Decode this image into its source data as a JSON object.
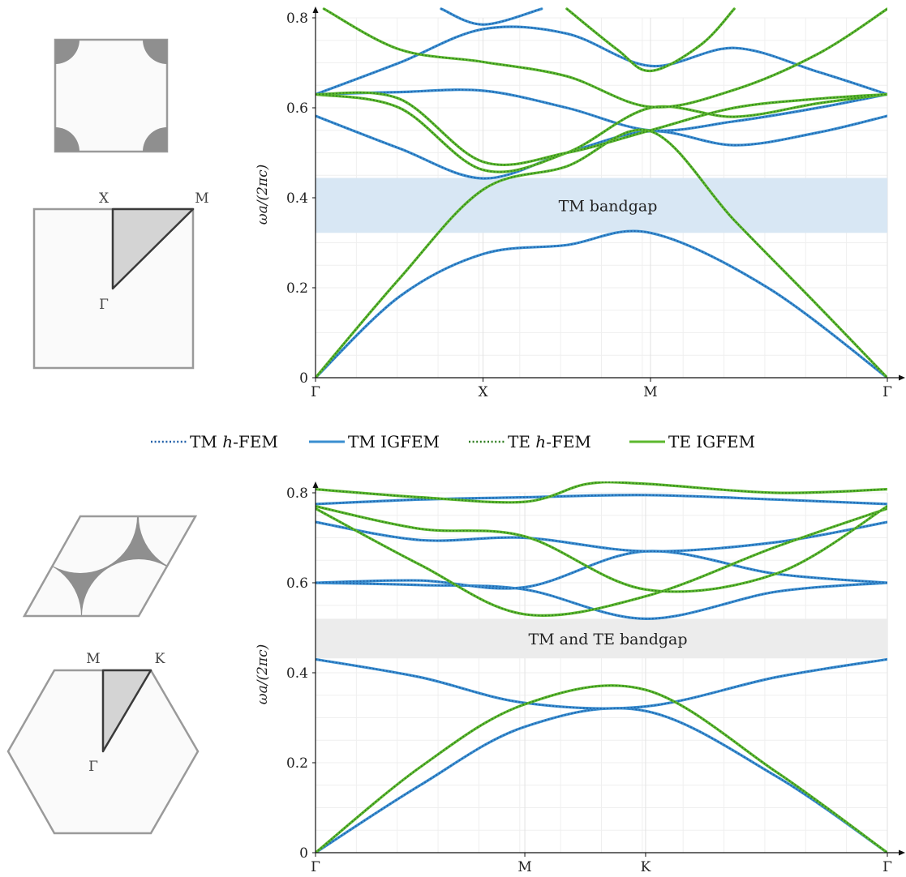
{
  "colors": {
    "tm": "#3a8fd0",
    "te": "#5cb82e",
    "tm_dash": "#1f5fa8",
    "te_dash": "#2e7d1f",
    "tm_gap": "#d8e7f4",
    "full_gap": "#ececec",
    "inclusion": "#8f8f8f",
    "cell_border": "#9a9a9a",
    "ibz_fill": "#d4d4d4",
    "ibz_border": "#3a3a3a",
    "cell_bg": "#fafafa"
  },
  "legend": [
    {
      "id": "tm-hfem",
      "label_pre": "TM ",
      "label_em": "h",
      "label_post": "-FEM",
      "color": "tm",
      "style": "dotted"
    },
    {
      "id": "tm-igfem",
      "label_pre": "TM IGFEM",
      "label_em": "",
      "label_post": "",
      "color": "tm",
      "style": "solid"
    },
    {
      "id": "te-hfem",
      "label_pre": "TE ",
      "label_em": "h",
      "label_post": "-FEM",
      "color": "te",
      "style": "dotted"
    },
    {
      "id": "te-igfem",
      "label_pre": "TE IGFEM",
      "label_em": "",
      "label_post": "",
      "color": "te",
      "style": "solid"
    }
  ],
  "square_lattice": {
    "bz_labels": {
      "X": "X",
      "M": "M",
      "Gamma": "Γ"
    }
  },
  "hex_lattice": {
    "bz_labels": {
      "M": "M",
      "K": "K",
      "Gamma": "Γ"
    }
  },
  "chart_data": [
    {
      "type": "line",
      "ylabel": "ωa/(2πc)",
      "ylim": [
        0,
        0.8
      ],
      "yticks": [
        0,
        0.2,
        0.4,
        0.6,
        0.8
      ],
      "ytick_labels": [
        "0",
        "0.2",
        "0.4",
        "0.6",
        "0.8"
      ],
      "xticks": [
        0,
        1,
        2,
        3.414
      ],
      "xtick_labels": [
        "Γ",
        "X",
        "M",
        "Γ"
      ],
      "xlim": [
        0,
        3.414
      ],
      "bandgap": {
        "label": "TM bandgap",
        "range": [
          0.322,
          0.444
        ],
        "color": "tm_gap"
      },
      "series": [
        {
          "name": "TM",
          "x": [
            0,
            0.5,
            1,
            1.5,
            2,
            2.7,
            3.414
          ],
          "values": [
            0,
            0.18,
            0.275,
            0.295,
            0.322,
            0.2,
            0
          ]
        },
        {
          "name": "TM",
          "x": [
            0,
            0.5,
            1,
            1.5,
            2,
            2.5,
            3,
            3.414
          ],
          "values": [
            0.582,
            0.51,
            0.443,
            0.5,
            0.548,
            0.517,
            0.545,
            0.582
          ]
        },
        {
          "name": "TM",
          "x": [
            0,
            0.5,
            1,
            1.5,
            2,
            2.5,
            3,
            3.414
          ],
          "values": [
            0.63,
            0.635,
            0.638,
            0.6,
            0.55,
            0.57,
            0.6,
            0.63
          ]
        },
        {
          "name": "TM",
          "x": [
            0,
            0.5,
            1,
            1.5,
            2,
            2.5,
            3,
            3.414
          ],
          "values": [
            0.63,
            0.7,
            0.775,
            0.765,
            0.693,
            0.733,
            0.68,
            0.63
          ]
        },
        {
          "name": "TM",
          "x": [
            0.75,
            1,
            1.35
          ],
          "values": [
            0.82,
            0.785,
            0.82
          ]
        },
        {
          "name": "TE",
          "x": [
            0,
            0.5,
            1,
            1.5,
            2,
            2.5,
            3,
            3.414
          ],
          "values": [
            0,
            0.22,
            0.418,
            0.47,
            0.548,
            0.35,
            0.16,
            0
          ]
        },
        {
          "name": "TE",
          "x": [
            0,
            0.5,
            1,
            1.5,
            2,
            2.5,
            3,
            3.414
          ],
          "values": [
            0.63,
            0.6,
            0.462,
            0.5,
            0.6,
            0.58,
            0.61,
            0.63
          ]
        },
        {
          "name": "TE",
          "x": [
            0,
            0.5,
            1,
            1.5,
            2,
            2.5,
            3,
            3.414
          ],
          "values": [
            0.63,
            0.62,
            0.48,
            0.5,
            0.55,
            0.6,
            0.62,
            0.63
          ]
        },
        {
          "name": "TE",
          "x": [
            0.05,
            0.5,
            1,
            1.5,
            2,
            2.5,
            3,
            3.414
          ],
          "values": [
            0.82,
            0.73,
            0.702,
            0.67,
            0.602,
            0.64,
            0.72,
            0.82
          ]
        },
        {
          "name": "TE",
          "x": [
            1.5,
            1.8,
            2,
            2.3,
            2.5
          ],
          "values": [
            0.82,
            0.73,
            0.682,
            0.74,
            0.82
          ]
        }
      ]
    },
    {
      "type": "line",
      "ylabel": "ωa/(2πc)",
      "ylim": [
        0,
        0.8
      ],
      "yticks": [
        0,
        0.2,
        0.4,
        0.6,
        0.8
      ],
      "ytick_labels": [
        "0",
        "0.2",
        "0.4",
        "0.6",
        "0.8"
      ],
      "xticks": [
        0,
        1,
        1.577,
        2.732
      ],
      "xtick_labels": [
        "Γ",
        "M",
        "K",
        "Γ"
      ],
      "xlim": [
        0,
        2.732
      ],
      "bandgap": {
        "label": "TM and TE bandgap",
        "range": [
          0.432,
          0.52
        ],
        "color": "full_gap"
      },
      "series": [
        {
          "name": "TM",
          "x": [
            0,
            0.5,
            1,
            1.577,
            2.2,
            2.732
          ],
          "values": [
            0,
            0.15,
            0.28,
            0.315,
            0.17,
            0
          ]
        },
        {
          "name": "TM",
          "x": [
            0,
            0.5,
            1,
            1.577,
            2.2,
            2.732
          ],
          "values": [
            0.43,
            0.39,
            0.333,
            0.325,
            0.39,
            0.43
          ]
        },
        {
          "name": "TM",
          "x": [
            0,
            0.5,
            1,
            1.577,
            2.2,
            2.732
          ],
          "values": [
            0.6,
            0.595,
            0.585,
            0.52,
            0.58,
            0.6
          ]
        },
        {
          "name": "TM",
          "x": [
            0,
            0.5,
            1,
            1.577,
            2.2,
            2.732
          ],
          "values": [
            0.6,
            0.605,
            0.59,
            0.67,
            0.62,
            0.6
          ]
        },
        {
          "name": "TM",
          "x": [
            0,
            0.5,
            1,
            1.577,
            2.2,
            2.732
          ],
          "values": [
            0.735,
            0.695,
            0.7,
            0.67,
            0.69,
            0.735
          ]
        },
        {
          "name": "TM",
          "x": [
            0,
            0.5,
            1,
            1.577,
            2.2,
            2.732
          ],
          "values": [
            0.775,
            0.785,
            0.79,
            0.795,
            0.785,
            0.775
          ]
        },
        {
          "name": "TE",
          "x": [
            0,
            0.5,
            1,
            1.577,
            2.2,
            2.732
          ],
          "values": [
            0,
            0.19,
            0.33,
            0.362,
            0.18,
            0
          ]
        },
        {
          "name": "TE",
          "x": [
            0,
            0.5,
            1,
            1.577,
            2.2,
            2.732
          ],
          "values": [
            0.765,
            0.64,
            0.53,
            0.57,
            0.68,
            0.765
          ]
        },
        {
          "name": "TE",
          "x": [
            0,
            0.5,
            1,
            1.577,
            2.2,
            2.732
          ],
          "values": [
            0.77,
            0.72,
            0.703,
            0.585,
            0.62,
            0.77
          ]
        },
        {
          "name": "TE",
          "x": [
            0,
            0.5,
            1,
            1.3,
            1.577,
            2.2,
            2.732
          ],
          "values": [
            0.808,
            0.79,
            0.78,
            0.82,
            0.82,
            0.8,
            0.808
          ]
        }
      ]
    }
  ]
}
